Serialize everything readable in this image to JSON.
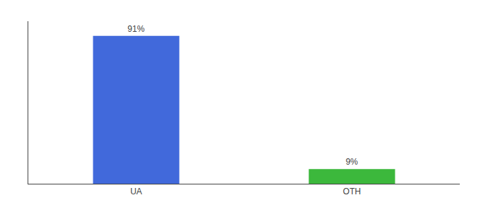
{
  "chart_data": {
    "type": "bar",
    "categories": [
      "UA",
      "OTH"
    ],
    "values": [
      91,
      9
    ],
    "value_labels": [
      "91%",
      "9%"
    ],
    "colors": [
      "#4169db",
      "#3cb83c"
    ],
    "ylim": [
      0,
      100
    ],
    "grid": false,
    "data_labels": true,
    "tick_labels": "x"
  }
}
